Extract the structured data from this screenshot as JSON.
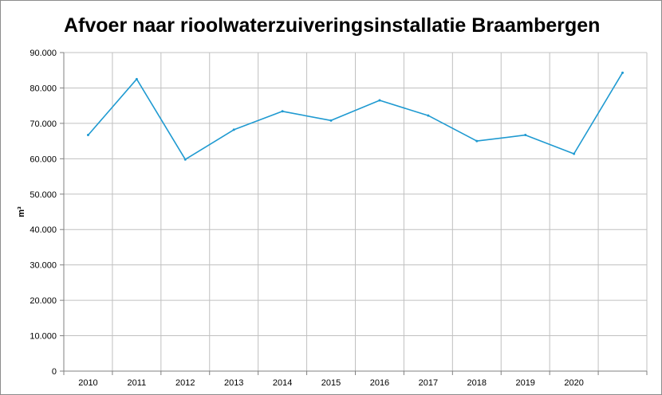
{
  "chart_data": {
    "type": "line",
    "title": "Afvoer naar rioolwaterzuiveringsinstallatie Braambergen",
    "xlabel": "",
    "ylabel": "m³",
    "categories": [
      "2010",
      "2011",
      "2012",
      "2013",
      "2014",
      "2015",
      "2016",
      "2017",
      "2018",
      "2019",
      "2020",
      ""
    ],
    "series": [
      {
        "values": [
          66700,
          82500,
          59800,
          68200,
          73400,
          70800,
          76500,
          72200,
          65000,
          66700,
          61400,
          84300
        ],
        "color": "#1f9ad1"
      }
    ],
    "ylim": [
      0,
      90000
    ],
    "yticks": [
      0,
      10000,
      20000,
      30000,
      40000,
      50000,
      60000,
      70000,
      80000,
      90000
    ],
    "ytick_labels": [
      "0",
      "10.000",
      "20.000",
      "30.000",
      "40.000",
      "50.000",
      "60.000",
      "70.000",
      "80.000",
      "90.000"
    ],
    "grid": true,
    "gridline_color": "#c0c0c0",
    "axis_color": "#808080"
  }
}
